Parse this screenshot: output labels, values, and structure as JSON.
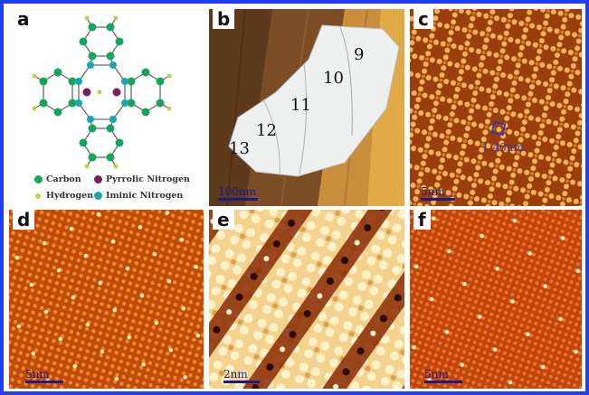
{
  "figure": {
    "border_color": "#1f3cff",
    "panels": {
      "a": {
        "label": "a",
        "legend": [
          {
            "text": "Carbon",
            "color": "#1aa35a"
          },
          {
            "text": "Pyrrolic Nitrogen",
            "color": "#7a1f5c"
          },
          {
            "text": "Hydrogen",
            "color": "#b8d24a"
          },
          {
            "text": "Iminic Nitrogen",
            "color": "#1aa6b0"
          }
        ]
      },
      "b": {
        "label": "b",
        "terraces": [
          "9",
          "10",
          "11",
          "12",
          "13"
        ],
        "scale_text": "100nm"
      },
      "c": {
        "label": "c",
        "scale_text": "5nm",
        "annotation": "1.40nm",
        "annotation_color": "#3a3aa0"
      },
      "d": {
        "label": "d",
        "scale_text": "5nm"
      },
      "e": {
        "label": "e",
        "scale_text": "2nm"
      },
      "f": {
        "label": "f",
        "scale_text": "5nm"
      }
    }
  }
}
